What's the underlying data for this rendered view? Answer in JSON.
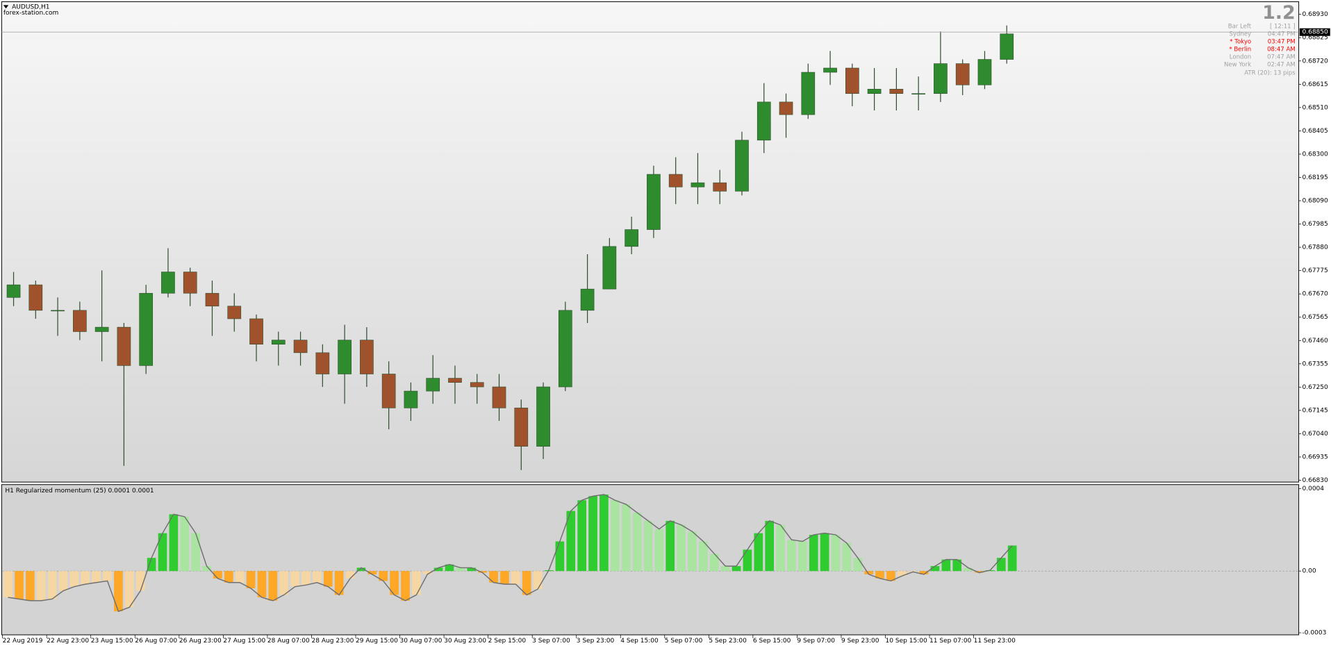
{
  "window": {
    "symbol": "AUDUSD,H1",
    "source": "forex-station.com",
    "spread": "1.2"
  },
  "info_panel": {
    "rows": [
      {
        "label": "Bar Left",
        "value": "[ 12:11 ]",
        "color": "#a0a0a0"
      },
      {
        "label": "Sydney",
        "value": "04:47 PM",
        "color": "#a0a0a0"
      },
      {
        "label": "* Tokyo",
        "value": "03:47 PM",
        "color": "#ff0000"
      },
      {
        "label": "* Berlin",
        "value": "08:47 AM",
        "color": "#ff0000"
      },
      {
        "label": "London",
        "value": "07:47 AM",
        "color": "#a0a0a0"
      },
      {
        "label": "New York",
        "value": "02:47 AM",
        "color": "#a0a0a0"
      }
    ],
    "atr": "ATR (20): 13 pips"
  },
  "chart_data": [
    {
      "type": "candlestick",
      "up_color": "#2e8b2e",
      "down_color": "#a0522d",
      "wick_color": "#2f4f2f",
      "current_price": {
        "value": 0.6885,
        "label": "0.68850"
      },
      "open": [
        0.67654,
        0.67711,
        0.67596,
        0.67596,
        0.675,
        0.6752,
        0.67347,
        0.67673,
        0.67769,
        0.67673,
        0.67615,
        0.67558,
        0.67443,
        0.67462,
        0.67405,
        0.67309,
        0.67462,
        0.67309,
        0.67156,
        0.67232,
        0.6729,
        0.67271,
        0.67251,
        0.67156,
        0.66983,
        0.67251,
        0.67596,
        0.67692,
        0.67884,
        0.6796,
        0.68209,
        0.68152,
        0.68171,
        0.68133,
        0.68363,
        0.68535,
        0.68478,
        0.68669,
        0.68688,
        0.68573,
        0.68593,
        0.68573,
        0.68573,
        0.68708,
        0.68612,
        0.68727
      ],
      "high": [
        0.67769,
        0.6773,
        0.67654,
        0.67635,
        0.67776,
        0.67539,
        0.67711,
        0.67876,
        0.67788,
        0.6773,
        0.67673,
        0.67577,
        0.675,
        0.675,
        0.67443,
        0.67531,
        0.6752,
        0.67366,
        0.67271,
        0.67394,
        0.67347,
        0.67309,
        0.67309,
        0.67194,
        0.67271,
        0.67635,
        0.67849,
        0.67922,
        0.68018,
        0.68248,
        0.68286,
        0.68305,
        0.68229,
        0.68401,
        0.6862,
        0.68573,
        0.68708,
        0.68765,
        0.68708,
        0.68688,
        0.68688,
        0.6865,
        0.68853,
        0.68727,
        0.68765,
        0.6888
      ],
      "low": [
        0.67615,
        0.67558,
        0.67481,
        0.67462,
        0.67366,
        0.66895,
        0.67309,
        0.67654,
        0.67615,
        0.67481,
        0.675,
        0.67366,
        0.67347,
        0.67347,
        0.67251,
        0.67175,
        0.67251,
        0.6706,
        0.67098,
        0.67175,
        0.67175,
        0.67175,
        0.67098,
        0.66876,
        0.66926,
        0.67232,
        0.67539,
        0.67711,
        0.67849,
        0.67922,
        0.68075,
        0.68075,
        0.68075,
        0.68114,
        0.68305,
        0.68374,
        0.68459,
        0.68612,
        0.68516,
        0.68497,
        0.68497,
        0.68497,
        0.68535,
        0.68566,
        0.68593,
        0.68708
      ],
      "close": [
        0.67711,
        0.67596,
        0.67596,
        0.675,
        0.6752,
        0.67347,
        0.67673,
        0.67769,
        0.67673,
        0.67615,
        0.67558,
        0.67443,
        0.67462,
        0.67405,
        0.67309,
        0.67462,
        0.67309,
        0.67156,
        0.67232,
        0.6729,
        0.67271,
        0.67251,
        0.67156,
        0.66983,
        0.67251,
        0.67596,
        0.67692,
        0.67884,
        0.6796,
        0.68209,
        0.68152,
        0.68171,
        0.68133,
        0.68363,
        0.68535,
        0.68478,
        0.68669,
        0.68688,
        0.68573,
        0.68593,
        0.68573,
        0.68573,
        0.68708,
        0.68612,
        0.68727,
        0.68842
      ],
      "ylim": [
        0.66822,
        0.68987
      ],
      "yticks": [
        {
          "value": 0.6893,
          "label": "0.68930"
        },
        {
          "value": 0.68825,
          "label": "0.68825"
        },
        {
          "value": 0.6872,
          "label": "0.68720"
        },
        {
          "value": 0.68615,
          "label": "0.68615"
        },
        {
          "value": 0.6851,
          "label": "0.68510"
        },
        {
          "value": 0.68405,
          "label": "0.68405"
        },
        {
          "value": 0.683,
          "label": "0.68300"
        },
        {
          "value": 0.68195,
          "label": "0.68195"
        },
        {
          "value": 0.6809,
          "label": "0.68090"
        },
        {
          "value": 0.67985,
          "label": "0.67985"
        },
        {
          "value": 0.6788,
          "label": "0.67880"
        },
        {
          "value": 0.67775,
          "label": "0.67775"
        },
        {
          "value": 0.6767,
          "label": "0.67670"
        },
        {
          "value": 0.67565,
          "label": "0.67565"
        },
        {
          "value": 0.6746,
          "label": "0.67460"
        },
        {
          "value": 0.67355,
          "label": "0.67355"
        },
        {
          "value": 0.6725,
          "label": "0.67250"
        },
        {
          "value": 0.67145,
          "label": "0.67145"
        },
        {
          "value": 0.6704,
          "label": "0.67040"
        },
        {
          "value": 0.66935,
          "label": "0.66935"
        },
        {
          "value": 0.6683,
          "label": "0.66830"
        }
      ],
      "xlim": [
        0,
        58.73
      ],
      "xticks": [
        {
          "value": 0,
          "label": "22 Aug 2019"
        },
        {
          "value": 2,
          "label": "22 Aug 23:00"
        },
        {
          "value": 4,
          "label": "23 Aug 15:00"
        },
        {
          "value": 6,
          "label": "26 Aug 07:00"
        },
        {
          "value": 8,
          "label": "26 Aug 23:00"
        },
        {
          "value": 10,
          "label": "27 Aug 15:00"
        },
        {
          "value": 12,
          "label": "28 Aug 07:00"
        },
        {
          "value": 14,
          "label": "28 Aug 23:00"
        },
        {
          "value": 16,
          "label": "29 Aug 15:00"
        },
        {
          "value": 18,
          "label": "30 Aug 07:00"
        },
        {
          "value": 20,
          "label": "30 Aug 23:00"
        },
        {
          "value": 22,
          "label": "2 Sep 15:00"
        },
        {
          "value": 24,
          "label": "3 Sep 07:00"
        },
        {
          "value": 26,
          "label": "3 Sep 23:00"
        },
        {
          "value": 28,
          "label": "4 Sep 15:00"
        },
        {
          "value": 30,
          "label": "5 Sep 07:00"
        },
        {
          "value": 32,
          "label": "5 Sep 23:00"
        },
        {
          "value": 34,
          "label": "6 Sep 15:00"
        },
        {
          "value": 36,
          "label": "9 Sep 07:00"
        },
        {
          "value": 38,
          "label": "9 Sep 23:00"
        },
        {
          "value": 40,
          "label": "10 Sep 15:00"
        },
        {
          "value": 42,
          "label": "11 Sep 07:00"
        },
        {
          "value": 44,
          "label": "11 Sep 23:00"
        }
      ]
    },
    {
      "type": "histogram",
      "title": "H1 Regularized momentum (25) 0.0001 0.0001",
      "colors": {
        "pos_up": "#2ecc2e",
        "pos_down": "#a9e5a0",
        "neg_down": "#ffa726",
        "neg_up": "#f6d7a3"
      },
      "line_color": "#707070",
      "values": [
        -0.000128,
        -0.000136,
        -0.000144,
        -0.000144,
        -0.000136,
        -9.6e-05,
        -7.6e-05,
        -6.4e-05,
        -5.6e-05,
        -4.8e-05,
        -0.000196,
        -0.000176,
        -9.6e-05,
        6.4e-05,
        0.000184,
        0.000276,
        0.000264,
        0.000184,
        2.4e-05,
        -3.6e-05,
        -5.6e-05,
        -5.6e-05,
        -8.4e-05,
        -0.000128,
        -0.000144,
        -0.000116,
        -7.6e-05,
        -6.8e-05,
        -5.6e-05,
        -7.6e-05,
        -0.000116,
        -3.6e-05,
        1.6e-05,
        -1.6e-05,
        -4.8e-05,
        -0.000116,
        -0.000144,
        -0.000116,
        -1.6e-05,
        1.6e-05,
        3.2e-05,
        1.6e-05,
        1.6e-05,
        -8e-06,
        -5.6e-05,
        -6.4e-05,
        -6.4e-05,
        -0.000116,
        -8.8e-05,
        4e-06,
        0.000144,
        0.000292,
        0.000344,
        0.000364,
        0.000372,
        0.000344,
        0.000324,
        0.000284,
        0.000244,
        0.000204,
        0.000244,
        0.000224,
        0.000192,
        0.000144,
        8.4e-05,
        2.4e-05,
        2.4e-05,
        0.000104,
        0.000184,
        0.000244,
        0.000224,
        0.000152,
        0.000144,
        0.000176,
        0.000184,
        0.000176,
        0.000136,
        6.4e-05,
        -1.6e-05,
        -3.6e-05,
        -4.8e-05,
        -2.4e-05,
        -4e-06,
        -1.6e-05,
        2.4e-05,
        5.6e-05,
        5.6e-05,
        1.6e-05,
        -8e-06,
        4e-06,
        6.4e-05,
        0.000124
      ],
      "ylim": [
        -0.00031,
        0.00042
      ],
      "yticks": [
        0.0004,
        {
          "value": 0,
          "label": "0.00"
        },
        -0.0003
      ]
    }
  ]
}
